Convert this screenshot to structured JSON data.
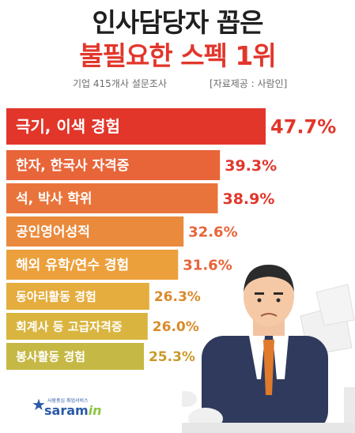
{
  "header": {
    "title_line1": "인사담당자 꼽은",
    "title_line2": "불필요한 스펙 1위",
    "survey_note": "기업 415개사 설문조사",
    "source_note": "[자료제공 : 사람인]"
  },
  "logo": {
    "text_main": "saram",
    "text_accent": "in",
    "text_sub": "사람중심 취업서비스"
  },
  "chart_data": {
    "type": "bar",
    "orientation": "horizontal",
    "title": "인사담당자 꼽은 불필요한 스펙 1위",
    "categories": [
      "극기, 이색 경험",
      "한자, 한국사 자격증",
      "석, 박사 학위",
      "공인영어성적",
      "해외 유학/연수 경험",
      "동아리활동 경험",
      "회계사 등 고급자격증",
      "봉사활동 경험"
    ],
    "values": [
      47.7,
      39.3,
      38.9,
      32.6,
      31.6,
      26.3,
      26.0,
      25.3
    ],
    "value_labels": [
      "47.7%",
      "39.3%",
      "38.9%",
      "32.6%",
      "31.6%",
      "26.3%",
      "26.0%",
      "25.3%"
    ],
    "unit": "%",
    "colors": [
      "#e2362b",
      "#e8653a",
      "#e9743b",
      "#ea8a3c",
      "#eca03c",
      "#e5ad3e",
      "#d9b53f",
      "#c6b845"
    ],
    "label_colors": [
      "#e2362b",
      "#e2362b",
      "#e2362b",
      "#e8653a",
      "#e8653a",
      "#d98a2a",
      "#d98a2a",
      "#c99a2a"
    ],
    "xlim": [
      0,
      47.7
    ],
    "grid": false,
    "legend": "none"
  }
}
